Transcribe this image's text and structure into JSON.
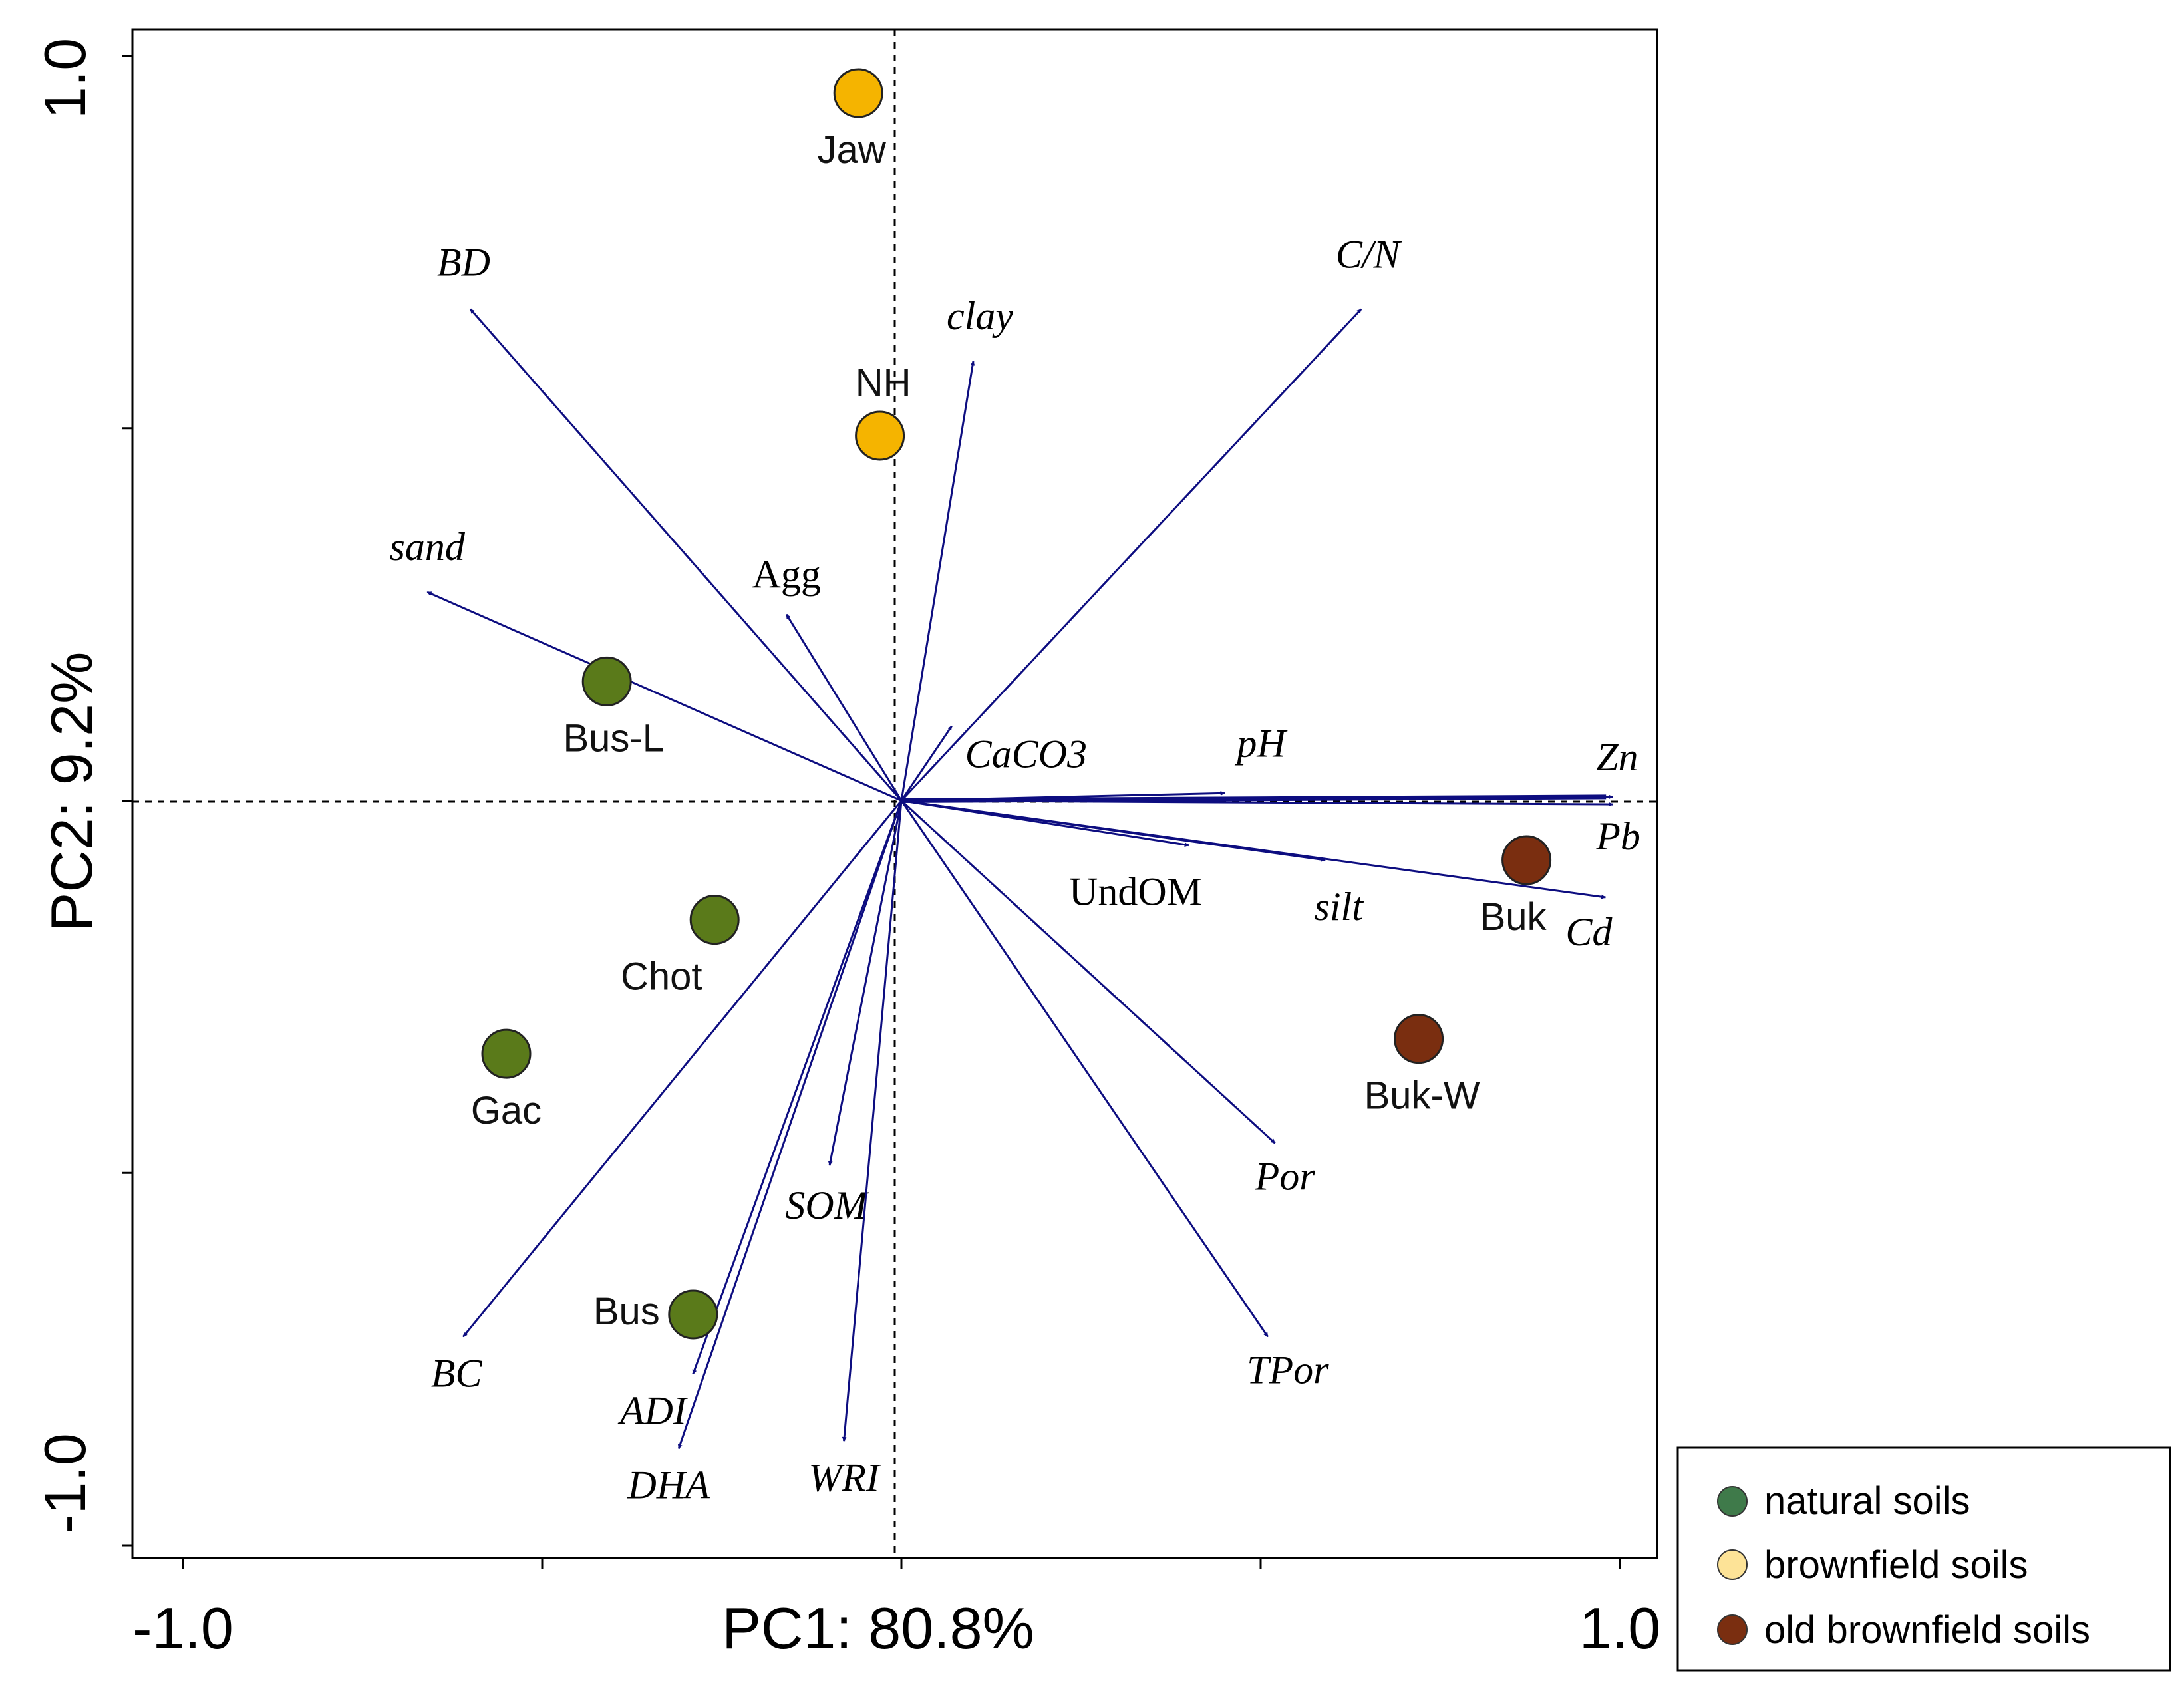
{
  "chart_data": {
    "type": "scatter",
    "subtype": "pca-biplot",
    "xlabel": "PC1: 80.8%",
    "ylabel": "PC2: 9.2%",
    "xlim": [
      -1.0,
      1.0
    ],
    "ylim": [
      -1.0,
      1.0
    ],
    "x_tick_labels": [
      "-1.0",
      "1.0"
    ],
    "y_tick_labels": [
      "-1.0",
      "1.0"
    ],
    "reference_lines": "dashed at x=0 and y=0",
    "arrow_color": "#0d0d80",
    "vectors": [
      {
        "name": "BD",
        "x": -0.6,
        "y": 0.66
      },
      {
        "name": "C/N",
        "x": 0.64,
        "y": 0.66
      },
      {
        "name": "clay",
        "x": 0.1,
        "y": 0.59
      },
      {
        "name": "sand",
        "x": -0.66,
        "y": 0.28
      },
      {
        "name": "Agg",
        "x": -0.16,
        "y": 0.25
      },
      {
        "name": "CaCO3",
        "x": 0.07,
        "y": 0.1
      },
      {
        "name": "pH",
        "x": 0.45,
        "y": 0.01
      },
      {
        "name": "Zn",
        "x": 0.99,
        "y": 0.005
      },
      {
        "name": "Pb",
        "x": 0.99,
        "y": -0.005
      },
      {
        "name": "UndOM",
        "x": 0.4,
        "y": -0.06
      },
      {
        "name": "silt",
        "x": 0.59,
        "y": -0.08
      },
      {
        "name": "Cd",
        "x": 0.98,
        "y": -0.13
      },
      {
        "name": "Por",
        "x": 0.52,
        "y": -0.46
      },
      {
        "name": "TPor",
        "x": 0.51,
        "y": -0.72
      },
      {
        "name": "SOM",
        "x": -0.1,
        "y": -0.49
      },
      {
        "name": "BC",
        "x": -0.61,
        "y": -0.72
      },
      {
        "name": "ADI",
        "x": -0.29,
        "y": -0.77
      },
      {
        "name": "DHA",
        "x": -0.31,
        "y": -0.87
      },
      {
        "name": "WRI",
        "x": -0.08,
        "y": -0.86
      }
    ],
    "series": [
      {
        "name": "natural soils",
        "color": "#5a7a1a",
        "legend_color": "#3f7a4a",
        "points": [
          {
            "label": "Bus-L",
            "x": -0.41,
            "y": 0.16
          },
          {
            "label": "Chot",
            "x": -0.26,
            "y": -0.16
          },
          {
            "label": "Gac",
            "x": -0.55,
            "y": -0.34
          },
          {
            "label": "Bus",
            "x": -0.29,
            "y": -0.69
          }
        ]
      },
      {
        "name": "brownfield soils",
        "color": "#f5b400",
        "legend_color": "#fde397",
        "points": [
          {
            "label": "Jaw",
            "x": -0.06,
            "y": 0.95
          },
          {
            "label": "NH",
            "x": -0.03,
            "y": 0.49
          }
        ]
      },
      {
        "name": "old brownfield soils",
        "color": "#7a2e10",
        "legend_color": "#7a2e10",
        "points": [
          {
            "label": "Buk",
            "x": 0.87,
            "y": -0.08
          },
          {
            "label": "Buk-W",
            "x": 0.72,
            "y": -0.32
          }
        ]
      }
    ],
    "legend_position": "bottom-right, outside plot"
  }
}
